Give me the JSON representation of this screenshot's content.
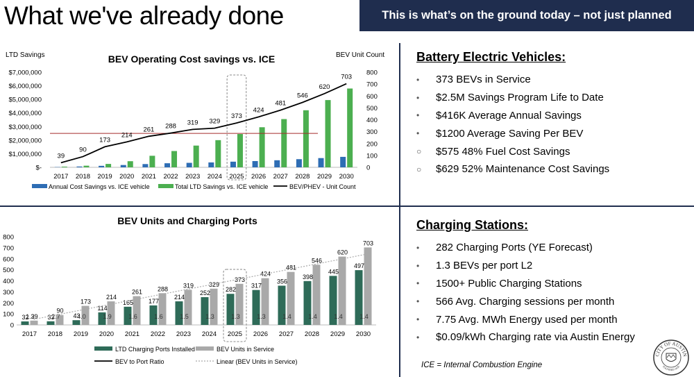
{
  "header": {
    "title": "What we've already done",
    "banner": "This is what’s on the ground today – not just planned"
  },
  "chart_data": [
    {
      "type": "bar",
      "title": "BEV Operating Cost savings vs. ICE",
      "ylabel": "LTD Savings",
      "y2label": "BEV Unit Count",
      "categories": [
        "2017",
        "2018",
        "2019",
        "2020",
        "2021",
        "2022",
        "2023",
        "2024",
        "2025",
        "2026",
        "2027",
        "2028",
        "2029",
        "2030"
      ],
      "ylim": [
        0,
        7000000
      ],
      "yticks": [
        "$7,000,000",
        "$6,000,000",
        "$5,000,000",
        "$4,000,000",
        "$3,000,000",
        "$2,000,000",
        "$1,000,000",
        "$-"
      ],
      "y2lim": [
        0,
        800
      ],
      "y2ticks": [
        "800",
        "700",
        "600",
        "500",
        "400",
        "300",
        "200",
        "100",
        "0"
      ],
      "series": [
        {
          "name": "Annual Cost Savings vs. ICE vehicle",
          "kind": "bar",
          "color": "#2e6db4",
          "values": [
            20000,
            60000,
            110000,
            170000,
            240000,
            300000,
            330000,
            360000,
            416000,
            460000,
            520000,
            600000,
            680000,
            770000
          ]
        },
        {
          "name": "Total LTD Savings vs. ICE vehicle",
          "kind": "bar",
          "color": "#4caf50",
          "values": [
            50000,
            120000,
            250000,
            450000,
            850000,
            1200000,
            1600000,
            2000000,
            2450000,
            2950000,
            3550000,
            4200000,
            4950000,
            5800000
          ]
        },
        {
          "name": "BEV/PHEV  - Unit Count",
          "kind": "line",
          "color": "#000000",
          "axis": "y2",
          "values": [
            39,
            90,
            173,
            214,
            261,
            288,
            319,
            329,
            373,
            424,
            481,
            546,
            620,
            703
          ],
          "labels": [
            "39",
            "90",
            "173",
            "214",
            "261",
            "288",
            "319",
            "329",
            "373",
            "424",
            "481",
            "546",
            "620",
            "703"
          ]
        }
      ],
      "reference_line": {
        "value": 2500000,
        "color": "#a52a2a"
      },
      "highlight_category": "2025"
    },
    {
      "type": "bar",
      "title": "BEV Units and Charging Ports",
      "categories": [
        "2017",
        "2018",
        "2019",
        "2020",
        "2021",
        "2022",
        "2023",
        "2024",
        "2025",
        "2026",
        "2027",
        "2028",
        "2029",
        "2030"
      ],
      "ylim": [
        0,
        800
      ],
      "yticks": [
        "800",
        "700",
        "600",
        "500",
        "400",
        "300",
        "200",
        "100",
        "0"
      ],
      "series": [
        {
          "name": "LTD Charging Ports Installed",
          "kind": "bar",
          "color": "#2e6b58",
          "values": [
            32,
            33,
            43,
            114,
            165,
            177,
            214,
            252,
            282,
            317,
            356,
            398,
            445,
            497
          ],
          "labels": [
            "32",
            "33",
            "43",
            "114",
            "165",
            "177",
            "214",
            "252",
            "282",
            "317",
            "356",
            "398",
            "445",
            "497"
          ]
        },
        {
          "name": "BEV Units in Service",
          "kind": "bar",
          "color": "#a9a9a9",
          "values": [
            39,
            90,
            173,
            214,
            261,
            288,
            319,
            329,
            373,
            424,
            481,
            546,
            620,
            703
          ],
          "labels": [
            "39",
            "90",
            "173",
            "214",
            "261",
            "288",
            "319",
            "329",
            "373",
            "424",
            "481",
            "546",
            "620",
            "703"
          ]
        },
        {
          "name": "BEV to Port Ratio",
          "kind": "line",
          "color": "#000000",
          "values": [
            1.2,
            2.7,
            4.0,
            1.9,
            1.6,
            1.6,
            1.5,
            1.3,
            1.3,
            1.3,
            1.4,
            1.4,
            1.4,
            1.4
          ],
          "labels": [
            "1.2",
            "2.7",
            "4.0",
            "1.9",
            "1.6",
            "1.6",
            "1.5",
            "1.3",
            "1.3",
            "1.3",
            "1.4",
            "1.4",
            "1.4",
            "1.4"
          ]
        },
        {
          "name": "Linear (BEV Units in Service)",
          "kind": "trend",
          "color": "#a9a9a9"
        }
      ],
      "highlight_category": "2025"
    }
  ],
  "bev_panel": {
    "heading": "Battery Electric Vehicles:",
    "items": [
      {
        "text": "373 BEVs in Service",
        "bullet": "•"
      },
      {
        "text": "$2.5M Savings Program Life to Date",
        "bullet": "•"
      },
      {
        "text": "$416K Average Annual Savings",
        "bullet": "•"
      },
      {
        "text": "$1200 Average Saving Per BEV",
        "bullet": "•"
      },
      {
        "text": "$575 48% Fuel Cost Savings",
        "bullet": "○"
      },
      {
        "text": "$629 52% Maintenance Cost Savings",
        "bullet": "○"
      }
    ]
  },
  "charging_panel": {
    "heading": "Charging Stations:",
    "items": [
      {
        "text": "282 Charging Ports (YE Forecast)",
        "bullet": "•"
      },
      {
        "text": "1.3 BEVs per port L2",
        "bullet": "•"
      },
      {
        "text": "1500+ Public Charging Stations",
        "bullet": "•"
      },
      {
        "text": "566 Avg. Charging sessions per month",
        "bullet": "•"
      },
      {
        "text": "7.75 Avg. MWh Energy used per month",
        "bullet": "•"
      },
      {
        "text": "$0.09/kWh Charging rate via Austin Energy",
        "bullet": "•"
      }
    ]
  },
  "footnote": "ICE = Internal Combustion Engine",
  "seal": {
    "top_text": "CITY OF AUSTIN",
    "bottom_text": "FOUNDED 1839",
    "icon": "city-seal-icon"
  }
}
